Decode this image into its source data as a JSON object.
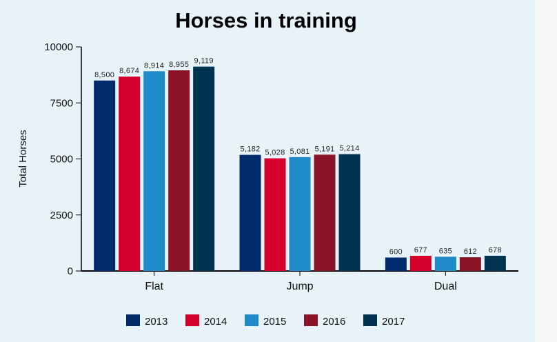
{
  "chart_data": {
    "type": "bar",
    "title": "Horses in training",
    "xlabel": "",
    "ylabel": "Total Horses",
    "ylim": [
      0,
      10000
    ],
    "yticks": [
      "0",
      "2500",
      "5000",
      "7500",
      "10000"
    ],
    "categories": [
      "Flat",
      "Jump",
      "Dual"
    ],
    "series": [
      {
        "name": "2013",
        "color": "#002c6e",
        "values": [
          8500,
          5182,
          600
        ],
        "labels": [
          "8,500",
          "5,182",
          "600"
        ]
      },
      {
        "name": "2014",
        "color": "#d6002c",
        "values": [
          8674,
          5028,
          677
        ],
        "labels": [
          "8,674",
          "5,028",
          "677"
        ]
      },
      {
        "name": "2015",
        "color": "#1e8bc8",
        "values": [
          8914,
          5081,
          635
        ],
        "labels": [
          "8,914",
          "5,081",
          "635"
        ]
      },
      {
        "name": "2016",
        "color": "#8a1426",
        "values": [
          8955,
          5191,
          612
        ],
        "labels": [
          "8,955",
          "5,191",
          "612"
        ]
      },
      {
        "name": "2017",
        "color": "#00334f",
        "values": [
          9119,
          5214,
          678
        ],
        "labels": [
          "9,119",
          "5,214",
          "678"
        ]
      }
    ],
    "grid": false,
    "legend_position": "bottom"
  }
}
